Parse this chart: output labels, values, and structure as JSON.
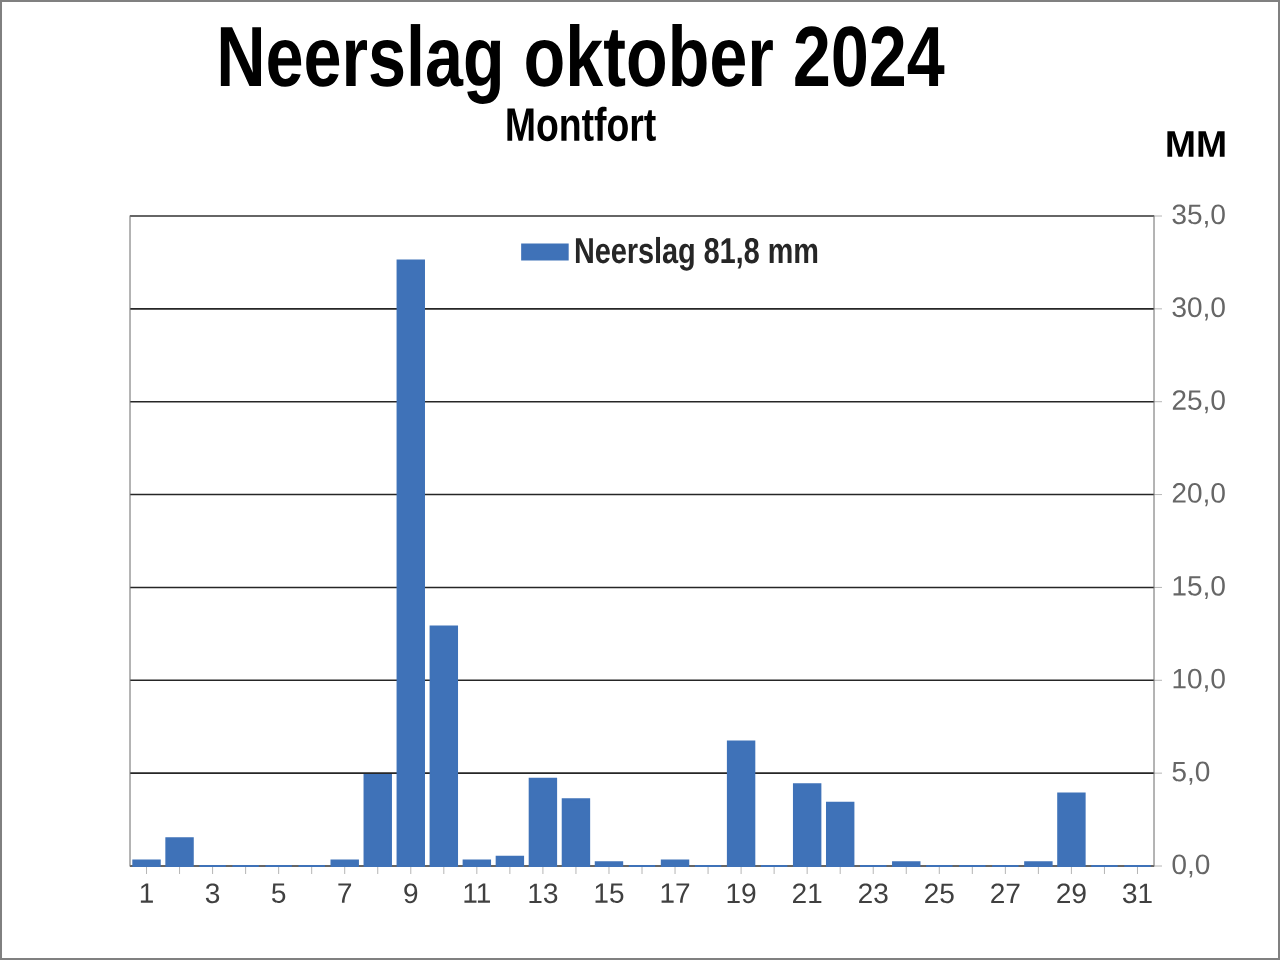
{
  "chart_data": {
    "type": "bar",
    "title": "Neerslag oktober 2024",
    "subtitle": "Montfort",
    "ylabel": "MM",
    "categories": [
      "1",
      null,
      "3",
      null,
      "5",
      null,
      "7",
      null,
      "9",
      null,
      "11",
      null,
      "13",
      null,
      "15",
      null,
      "17",
      null,
      "19",
      null,
      "21",
      null,
      "23",
      null,
      "25",
      null,
      "27",
      null,
      "29",
      null,
      "31"
    ],
    "series": [
      {
        "name": "Neerslag 81,8 mm",
        "color": "#3f72b8",
        "values": [
          0.3,
          1.5,
          0,
          0,
          0,
          0,
          0.3,
          4.9,
          32.6,
          12.9,
          0.3,
          0.5,
          4.7,
          3.6,
          0.2,
          0,
          0.3,
          0,
          6.7,
          0,
          4.4,
          3.4,
          0,
          0.2,
          0,
          0,
          0,
          0.2,
          3.9,
          0,
          0
        ]
      }
    ],
    "ylim": [
      0,
      35
    ],
    "yticks": [
      {
        "value": 0,
        "label": "0,0"
      },
      {
        "value": 5,
        "label": "5,0"
      },
      {
        "value": 10,
        "label": "10,0"
      },
      {
        "value": 15,
        "label": "15,0"
      },
      {
        "value": 20,
        "label": "20,0"
      },
      {
        "value": 25,
        "label": "25,0"
      },
      {
        "value": 30,
        "label": "30,0"
      },
      {
        "value": 35,
        "label": "35,0"
      }
    ],
    "grid": "y",
    "legend": "top"
  }
}
